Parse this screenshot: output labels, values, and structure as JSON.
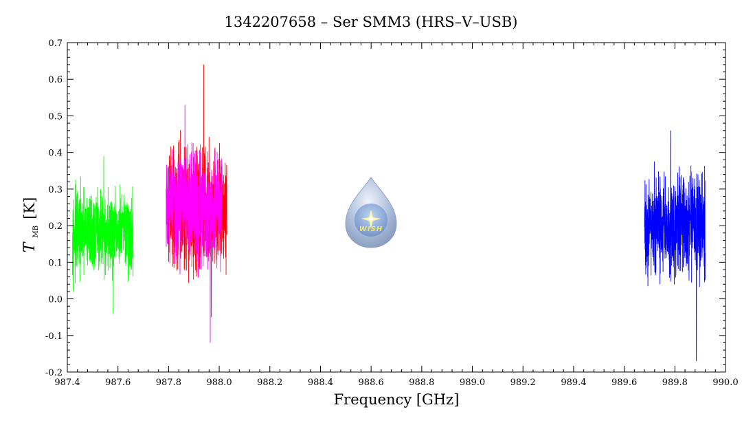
{
  "chart_data": {
    "type": "line",
    "title": "1342207658 – Ser SMM3 (HRS–V–USB)",
    "xlabel": "Frequency [GHz]",
    "ylabel": {
      "symbol": "T",
      "subscript": "MB",
      "unit": "[K]"
    },
    "xlim": [
      987.4,
      990.0
    ],
    "ylim": [
      -0.2,
      0.7
    ],
    "xticks": [
      "987.4",
      "987.6",
      "987.8",
      "988.0",
      "988.2",
      "988.4",
      "988.6",
      "988.8",
      "989.0",
      "989.2",
      "989.4",
      "989.6",
      "989.8",
      "990.0"
    ],
    "yticks": [
      "-0.2",
      "-0.1",
      "0.0",
      "0.1",
      "0.2",
      "0.3",
      "0.4",
      "0.5",
      "0.6",
      "0.7"
    ],
    "series": [
      {
        "color": "#00ff00",
        "x_range": [
          987.42,
          987.66
        ],
        "mean": 0.18,
        "min": -0.04,
        "max": 0.39
      },
      {
        "color": "#ff0000",
        "x_range": [
          987.8,
          988.03
        ],
        "mean": 0.25,
        "min": -0.05,
        "max": 0.64
      },
      {
        "color": "#ff00ff",
        "x_range": [
          987.79,
          988.01
        ],
        "mean": 0.25,
        "min": -0.12,
        "max": 0.53
      },
      {
        "color": "#0000ff",
        "x_range": [
          989.68,
          989.92
        ],
        "mean": 0.2,
        "min": -0.17,
        "max": 0.46
      }
    ],
    "grid": false,
    "logo": {
      "text": "WISH",
      "icon": "star-drop-icon"
    }
  }
}
